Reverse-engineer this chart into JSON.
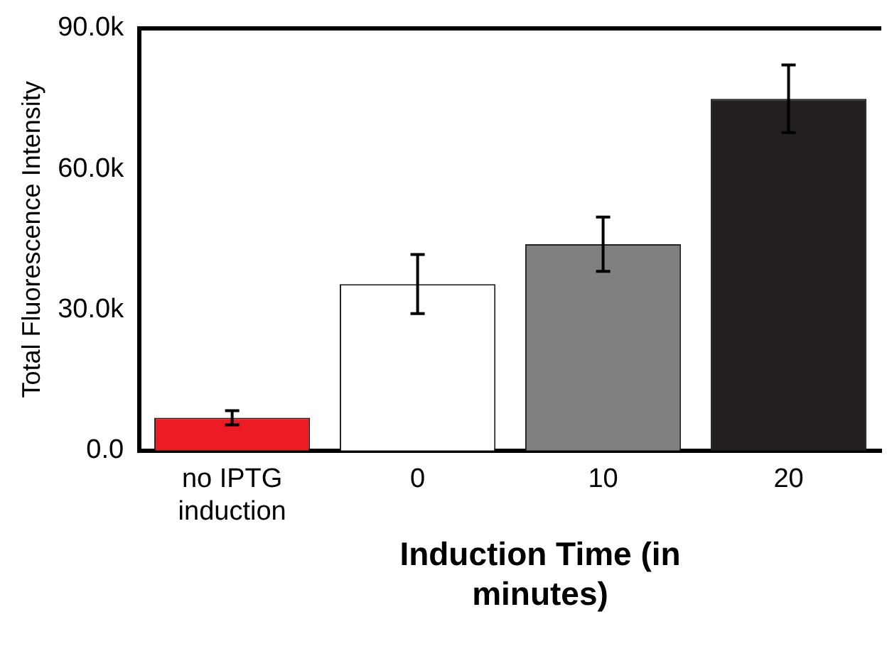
{
  "chart_data": {
    "type": "bar",
    "xlabel": "Induction Time (in minutes)",
    "ylabel": "Total Fluorescence Intensity",
    "categories": [
      "no IPTG induction",
      "0",
      "10",
      "20"
    ],
    "values": [
      7000,
      35500,
      44000,
      75000
    ],
    "colors": [
      "#ed1c24",
      "#ffffff",
      "#808080",
      "#231f20"
    ],
    "errors": [
      1500,
      6300,
      5800,
      7200
    ],
    "ylim": [
      0,
      90000
    ],
    "yticks": [
      {
        "value": 0,
        "label": "0.0"
      },
      {
        "value": 30000,
        "label": "30.0k"
      },
      {
        "value": 60000,
        "label": "60.0k"
      },
      {
        "value": 90000,
        "label": "90.0k"
      }
    ],
    "grid": false,
    "legend": false
  }
}
